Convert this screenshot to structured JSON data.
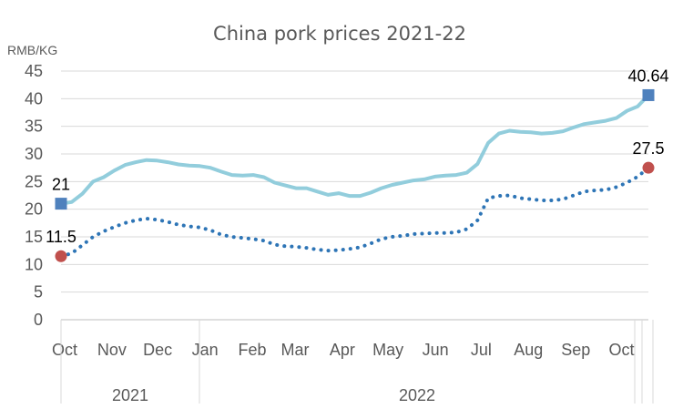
{
  "chart_data": {
    "type": "line",
    "title": "China pork prices 2021-22",
    "ylabel": "RMB/KG",
    "ylim": [
      0,
      45
    ],
    "yticks": [
      0,
      5,
      10,
      15,
      20,
      25,
      30,
      35,
      40,
      45
    ],
    "month_ticks": [
      {
        "label": "Oct",
        "date": "2021-10-01"
      },
      {
        "label": "Nov",
        "date": "2021-11-01"
      },
      {
        "label": "Dec",
        "date": "2021-12-01"
      },
      {
        "label": "Jan",
        "date": "2022-01-01"
      },
      {
        "label": "Feb",
        "date": "2022-02-01"
      },
      {
        "label": "Mar",
        "date": "2022-03-01"
      },
      {
        "label": "Apr",
        "date": "2022-04-01"
      },
      {
        "label": "May",
        "date": "2022-05-01"
      },
      {
        "label": "Jun",
        "date": "2022-06-01"
      },
      {
        "label": "Jul",
        "date": "2022-07-01"
      },
      {
        "label": "Aug",
        "date": "2022-08-01"
      },
      {
        "label": "Sep",
        "date": "2022-09-01"
      },
      {
        "label": "Oct",
        "date": "2022-10-01"
      }
    ],
    "year_groups": [
      {
        "label": "2021",
        "start": "2021-10-01",
        "end": "2021-12-31"
      },
      {
        "label": "2022",
        "start": "2022-01-01",
        "end": "2022-10-31"
      }
    ],
    "grid": "horizontal",
    "series": [
      {
        "style": "solid",
        "color": "#92CDDC",
        "points": [
          [
            "2021-10-01",
            21.0
          ],
          [
            "2021-10-08",
            21.3
          ],
          [
            "2021-10-15",
            22.8
          ],
          [
            "2021-10-22",
            25.0
          ],
          [
            "2021-10-29",
            25.8
          ],
          [
            "2021-11-05",
            27.0
          ],
          [
            "2021-11-12",
            28.0
          ],
          [
            "2021-11-19",
            28.5
          ],
          [
            "2021-11-26",
            28.9
          ],
          [
            "2021-12-03",
            28.8
          ],
          [
            "2021-12-10",
            28.5
          ],
          [
            "2021-12-17",
            28.1
          ],
          [
            "2021-12-24",
            27.9
          ],
          [
            "2021-12-31",
            27.8
          ],
          [
            "2022-01-07",
            27.5
          ],
          [
            "2022-01-14",
            26.8
          ],
          [
            "2022-01-21",
            26.2
          ],
          [
            "2022-01-28",
            26.1
          ],
          [
            "2022-02-04",
            26.2
          ],
          [
            "2022-02-11",
            25.8
          ],
          [
            "2022-02-18",
            24.8
          ],
          [
            "2022-02-25",
            24.3
          ],
          [
            "2022-03-04",
            23.8
          ],
          [
            "2022-03-11",
            23.8
          ],
          [
            "2022-03-18",
            23.2
          ],
          [
            "2022-03-25",
            22.6
          ],
          [
            "2022-04-01",
            22.9
          ],
          [
            "2022-04-08",
            22.4
          ],
          [
            "2022-04-15",
            22.4
          ],
          [
            "2022-04-22",
            23.0
          ],
          [
            "2022-04-29",
            23.8
          ],
          [
            "2022-05-06",
            24.4
          ],
          [
            "2022-05-13",
            24.8
          ],
          [
            "2022-05-20",
            25.2
          ],
          [
            "2022-05-27",
            25.4
          ],
          [
            "2022-06-03",
            25.9
          ],
          [
            "2022-06-10",
            26.1
          ],
          [
            "2022-06-17",
            26.2
          ],
          [
            "2022-06-24",
            26.6
          ],
          [
            "2022-07-01",
            28.2
          ],
          [
            "2022-07-08",
            32.0
          ],
          [
            "2022-07-15",
            33.7
          ],
          [
            "2022-07-22",
            34.2
          ],
          [
            "2022-07-29",
            34.0
          ],
          [
            "2022-08-05",
            33.9
          ],
          [
            "2022-08-12",
            33.7
          ],
          [
            "2022-08-19",
            33.8
          ],
          [
            "2022-08-26",
            34.1
          ],
          [
            "2022-09-02",
            34.8
          ],
          [
            "2022-09-09",
            35.4
          ],
          [
            "2022-09-16",
            35.7
          ],
          [
            "2022-09-23",
            36.0
          ],
          [
            "2022-09-30",
            36.5
          ],
          [
            "2022-10-07",
            37.8
          ],
          [
            "2022-10-14",
            38.6
          ],
          [
            "2022-10-21",
            40.64
          ]
        ],
        "end_labels": [
          {
            "date": "2021-10-01",
            "value": 21,
            "text": "21",
            "marker": "square",
            "color": "#4F81BD"
          },
          {
            "date": "2022-10-21",
            "value": 40.64,
            "text": "40.64",
            "marker": "square",
            "color": "#4F81BD"
          }
        ]
      },
      {
        "style": "dotted",
        "color": "#2E75B6",
        "points": [
          [
            "2021-10-01",
            11.5
          ],
          [
            "2021-10-08",
            12.0
          ],
          [
            "2021-10-15",
            13.5
          ],
          [
            "2021-10-22",
            15.0
          ],
          [
            "2021-10-29",
            16.0
          ],
          [
            "2021-11-05",
            16.8
          ],
          [
            "2021-11-12",
            17.5
          ],
          [
            "2021-11-19",
            18.0
          ],
          [
            "2021-11-26",
            18.3
          ],
          [
            "2021-12-03",
            18.1
          ],
          [
            "2021-12-10",
            17.7
          ],
          [
            "2021-12-17",
            17.2
          ],
          [
            "2021-12-24",
            16.9
          ],
          [
            "2021-12-31",
            16.7
          ],
          [
            "2022-01-07",
            16.2
          ],
          [
            "2022-01-14",
            15.4
          ],
          [
            "2022-01-21",
            15.0
          ],
          [
            "2022-01-28",
            14.8
          ],
          [
            "2022-02-04",
            14.6
          ],
          [
            "2022-02-11",
            14.3
          ],
          [
            "2022-02-18",
            13.6
          ],
          [
            "2022-02-25",
            13.3
          ],
          [
            "2022-03-04",
            13.2
          ],
          [
            "2022-03-11",
            13.0
          ],
          [
            "2022-03-18",
            12.7
          ],
          [
            "2022-03-25",
            12.5
          ],
          [
            "2022-04-01",
            12.6
          ],
          [
            "2022-04-08",
            12.8
          ],
          [
            "2022-04-15",
            13.1
          ],
          [
            "2022-04-22",
            13.8
          ],
          [
            "2022-04-29",
            14.6
          ],
          [
            "2022-05-06",
            15.0
          ],
          [
            "2022-05-13",
            15.2
          ],
          [
            "2022-05-20",
            15.5
          ],
          [
            "2022-05-27",
            15.6
          ],
          [
            "2022-06-03",
            15.7
          ],
          [
            "2022-06-10",
            15.7
          ],
          [
            "2022-06-17",
            15.8
          ],
          [
            "2022-06-24",
            16.4
          ],
          [
            "2022-07-01",
            18.0
          ],
          [
            "2022-07-08",
            22.0
          ],
          [
            "2022-07-15",
            22.4
          ],
          [
            "2022-07-22",
            22.5
          ],
          [
            "2022-07-29",
            22.0
          ],
          [
            "2022-08-05",
            21.8
          ],
          [
            "2022-08-12",
            21.6
          ],
          [
            "2022-08-19",
            21.6
          ],
          [
            "2022-08-26",
            21.8
          ],
          [
            "2022-09-02",
            22.5
          ],
          [
            "2022-09-09",
            23.2
          ],
          [
            "2022-09-16",
            23.4
          ],
          [
            "2022-09-23",
            23.5
          ],
          [
            "2022-09-30",
            24.0
          ],
          [
            "2022-10-07",
            24.8
          ],
          [
            "2022-10-14",
            25.9
          ],
          [
            "2022-10-21",
            27.5
          ]
        ],
        "end_labels": [
          {
            "date": "2021-10-01",
            "value": 11.5,
            "text": "11.5",
            "marker": "circle",
            "color": "#C0504D"
          },
          {
            "date": "2022-10-21",
            "value": 27.5,
            "text": "27.5",
            "marker": "circle",
            "color": "#C0504D"
          }
        ]
      }
    ]
  }
}
